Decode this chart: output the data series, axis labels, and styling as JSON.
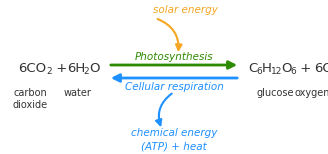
{
  "bg_color": "#ffffff",
  "label1": "carbon\ndioxide",
  "label2": "water",
  "label3": "glucose",
  "label4": "oxygen",
  "photosynthesis_label": "Photosynthesis",
  "cellular_label": "Cellular respiration",
  "solar_label": "solar energy",
  "chemical_label": "chemical energy\n(ATP) + heat",
  "color_orange": "#F5A623",
  "color_green": "#2E8B00",
  "color_blue": "#1E90FF",
  "color_dark": "#333333"
}
